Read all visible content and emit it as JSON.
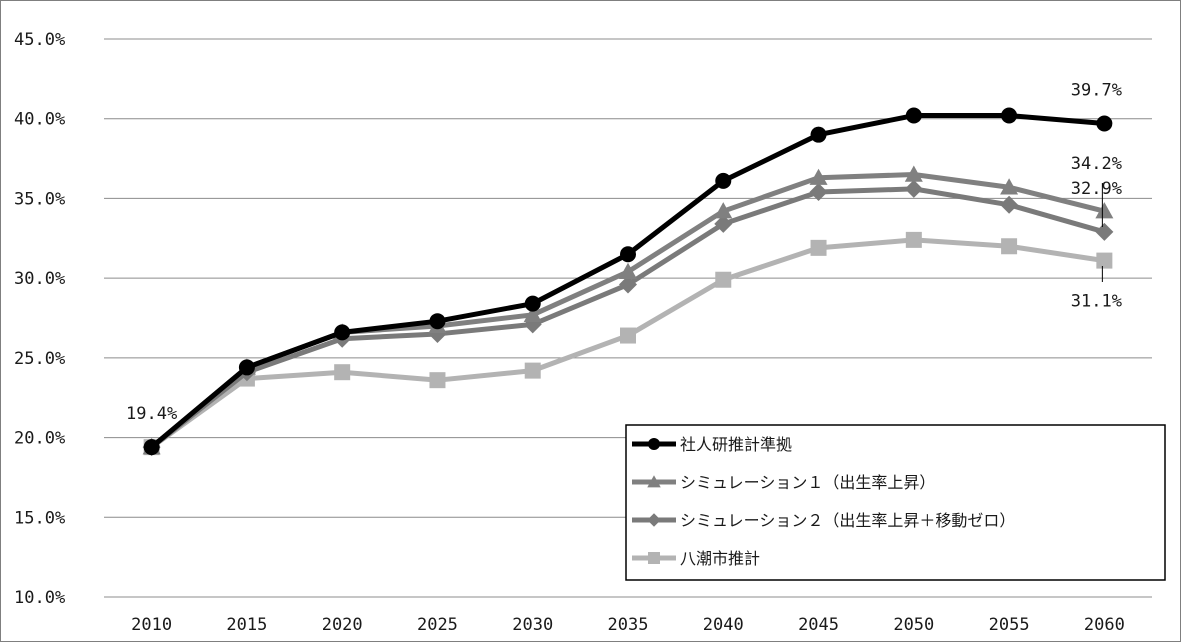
{
  "chart_data": {
    "type": "line",
    "x": [
      "2010",
      "2015",
      "2020",
      "2025",
      "2030",
      "2035",
      "2040",
      "2045",
      "2050",
      "2055",
      "2060"
    ],
    "y_ticks": [
      "10.0%",
      "15.0%",
      "20.0%",
      "25.0%",
      "30.0%",
      "35.0%",
      "40.0%",
      "45.0%"
    ],
    "ylim": [
      10,
      45
    ],
    "grid": true,
    "legend_position": "bottom-right",
    "series": [
      {
        "name": "社人研推計準拠",
        "marker": "circle",
        "color": "#000000",
        "values": [
          19.4,
          24.4,
          26.6,
          27.3,
          28.4,
          31.5,
          36.1,
          39.0,
          40.2,
          40.2,
          39.7
        ]
      },
      {
        "name": "シミュレーション１（出生率上昇）",
        "marker": "triangle",
        "color": "#808080",
        "values": [
          19.4,
          24.4,
          26.6,
          27.0,
          27.7,
          30.4,
          34.2,
          36.3,
          36.5,
          35.7,
          34.2
        ]
      },
      {
        "name": "シミュレーション２（出生率上昇＋移動ゼロ）",
        "marker": "diamond",
        "color": "#7a7a7a",
        "values": [
          19.4,
          24.1,
          26.2,
          26.5,
          27.1,
          29.6,
          33.4,
          35.4,
          35.6,
          34.6,
          32.9
        ]
      },
      {
        "name": "八潮市推計",
        "marker": "square",
        "color": "#b3b3b3",
        "values": [
          19.4,
          23.7,
          24.1,
          23.6,
          24.2,
          26.4,
          29.9,
          31.9,
          32.4,
          32.0,
          31.1
        ]
      }
    ],
    "data_labels": [
      {
        "text": "19.4%",
        "series": 0,
        "index": 0
      },
      {
        "text": "39.7%",
        "series": 0,
        "index": 10
      },
      {
        "text": "34.2%",
        "series": 1,
        "index": 10
      },
      {
        "text": "32.9%",
        "series": 2,
        "index": 10
      },
      {
        "text": "31.1%",
        "series": 3,
        "index": 10
      }
    ]
  }
}
